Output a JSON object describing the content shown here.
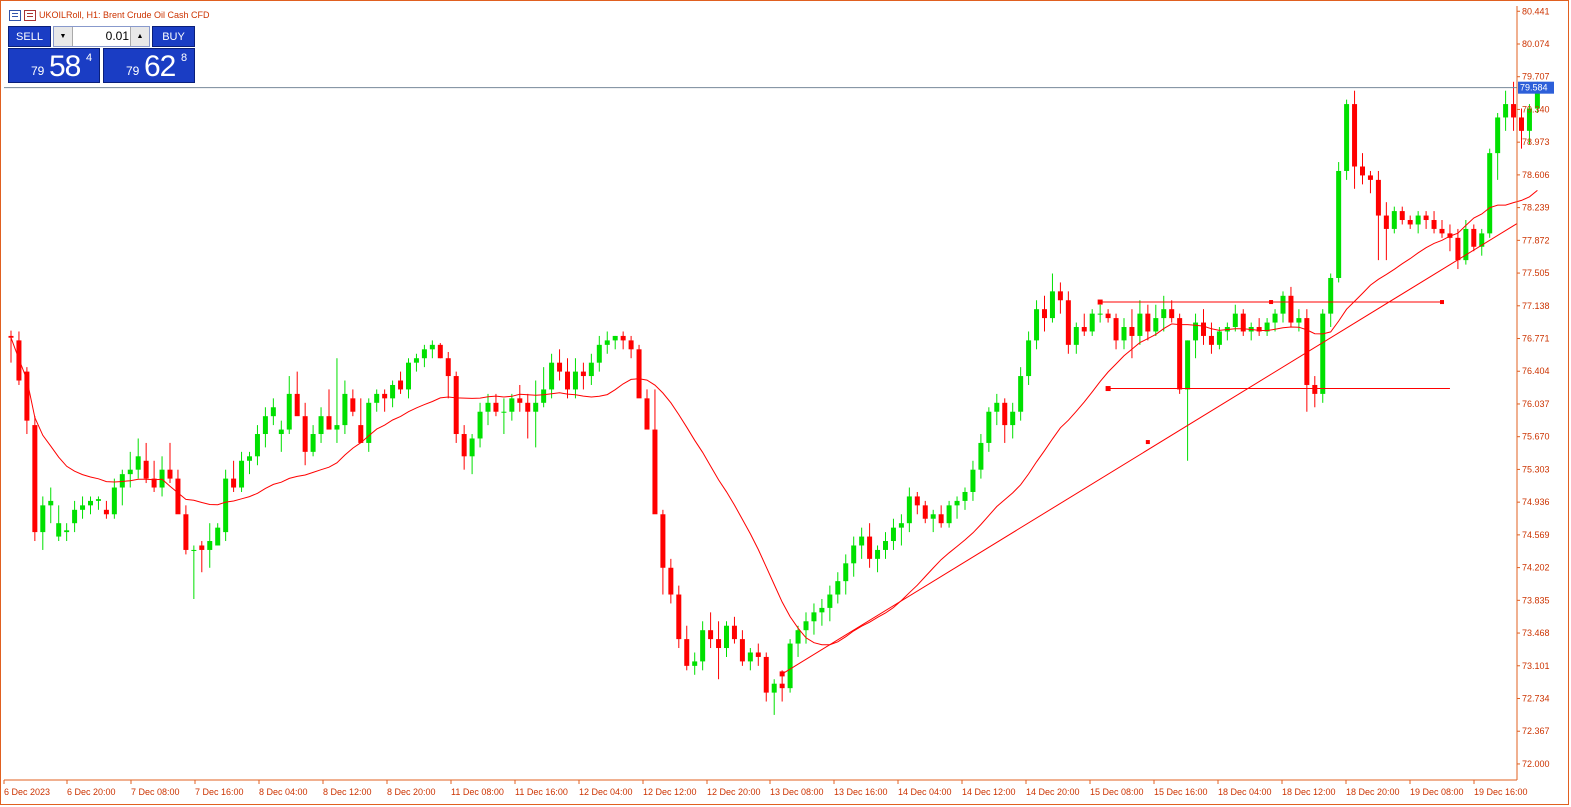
{
  "title_bar": {
    "symbol_text": "UKOILRoll, H1:  Brent Crude Oil Cash CFD"
  },
  "trade_panel": {
    "sell_label": "SELL",
    "buy_label": "BUY",
    "lot": "0.01",
    "sell_price": {
      "prefix": "79",
      "big": "58",
      "sup": "4"
    },
    "buy_price": {
      "prefix": "79",
      "big": "62",
      "sup": "8"
    }
  },
  "colors": {
    "bull": "#00e000",
    "bear": "#ff0000",
    "ma": "#ff0000",
    "axis_text": "#cc3300",
    "frame": "#e06020",
    "price_box": "#2d5fd9"
  },
  "chart_data": {
    "type": "candlestick",
    "symbol": "UKOILRoll",
    "timeframe": "H1",
    "ylim": [
      71.82,
      80.5
    ],
    "y_ticks": [
      80.441,
      80.074,
      79.707,
      79.34,
      78.973,
      78.606,
      78.239,
      77.872,
      77.505,
      77.138,
      76.771,
      76.404,
      76.037,
      75.67,
      75.303,
      74.936,
      74.569,
      74.202,
      73.835,
      73.468,
      73.101,
      72.734,
      72.367,
      72.0
    ],
    "x_tick_labels": [
      "6 Dec 2023",
      "6 Dec 20:00",
      "7 Dec 08:00",
      "7 Dec 16:00",
      "8 Dec 04:00",
      "8 Dec 12:00",
      "8 Dec 20:00",
      "11 Dec 08:00",
      "11 Dec 16:00",
      "12 Dec 04:00",
      "12 Dec 12:00",
      "12 Dec 20:00",
      "13 Dec 08:00",
      "13 Dec 16:00",
      "14 Dec 04:00",
      "14 Dec 12:00",
      "14 Dec 20:00",
      "15 Dec 08:00",
      "15 Dec 16:00",
      "18 Dec 04:00",
      "18 Dec 12:00",
      "18 Dec 20:00",
      "19 Dec 08:00",
      "19 Dec 16:00"
    ],
    "current_price": "79.584",
    "bars": [
      [
        76.8,
        76.86,
        76.5,
        76.78
      ],
      [
        76.75,
        76.85,
        76.25,
        76.3
      ],
      [
        76.4,
        76.45,
        75.7,
        75.85
      ],
      [
        75.8,
        75.9,
        74.5,
        74.6
      ],
      [
        74.6,
        75.0,
        74.4,
        74.9
      ],
      [
        74.9,
        75.1,
        74.7,
        74.95
      ],
      [
        74.55,
        74.9,
        74.5,
        74.7
      ],
      [
        74.6,
        74.7,
        74.5,
        74.62
      ],
      [
        74.7,
        74.95,
        74.6,
        74.85
      ],
      [
        74.85,
        75.0,
        74.75,
        74.9
      ],
      [
        74.9,
        75.0,
        74.8,
        74.95
      ],
      [
        74.95,
        75.0,
        74.85,
        74.97
      ],
      [
        74.85,
        74.95,
        74.75,
        74.8
      ],
      [
        74.8,
        75.2,
        74.75,
        75.1
      ],
      [
        75.1,
        75.3,
        74.9,
        75.25
      ],
      [
        75.25,
        75.5,
        75.1,
        75.3
      ],
      [
        75.3,
        75.65,
        75.2,
        75.45
      ],
      [
        75.4,
        75.6,
        75.15,
        75.2
      ],
      [
        75.2,
        75.4,
        75.05,
        75.1
      ],
      [
        75.1,
        75.45,
        75.0,
        75.3
      ],
      [
        75.3,
        75.6,
        75.15,
        75.2
      ],
      [
        75.2,
        75.3,
        74.9,
        74.8
      ],
      [
        74.8,
        74.9,
        74.35,
        74.4
      ],
      [
        74.4,
        74.45,
        73.85,
        74.4
      ],
      [
        74.45,
        74.5,
        74.15,
        74.4
      ],
      [
        74.4,
        74.7,
        74.2,
        74.5
      ],
      [
        74.45,
        74.7,
        74.45,
        74.65
      ],
      [
        74.6,
        75.3,
        74.5,
        75.2
      ],
      [
        75.2,
        75.4,
        75.05,
        75.1
      ],
      [
        75.1,
        75.5,
        75.05,
        75.4
      ],
      [
        75.4,
        75.5,
        75.25,
        75.45
      ],
      [
        75.45,
        75.8,
        75.35,
        75.7
      ],
      [
        75.7,
        76.0,
        75.55,
        75.9
      ],
      [
        75.9,
        76.1,
        75.8,
        76.0
      ],
      [
        75.7,
        75.85,
        75.5,
        75.75
      ],
      [
        75.75,
        76.35,
        75.7,
        76.15
      ],
      [
        76.15,
        76.4,
        76.05,
        75.9
      ],
      [
        75.9,
        76.05,
        75.35,
        75.5
      ],
      [
        75.5,
        75.8,
        75.45,
        75.7
      ],
      [
        75.7,
        76.0,
        75.6,
        75.9
      ],
      [
        75.9,
        76.2,
        75.8,
        75.75
      ],
      [
        75.75,
        76.55,
        75.6,
        75.8
      ],
      [
        75.8,
        76.3,
        75.7,
        76.15
      ],
      [
        76.1,
        76.2,
        75.9,
        75.95
      ],
      [
        75.8,
        76.1,
        75.75,
        75.6
      ],
      [
        75.6,
        76.1,
        75.5,
        76.05
      ],
      [
        76.05,
        76.2,
        75.95,
        76.15
      ],
      [
        76.15,
        76.2,
        75.95,
        76.1
      ],
      [
        76.1,
        76.3,
        76.0,
        76.25
      ],
      [
        76.3,
        76.4,
        76.15,
        76.2
      ],
      [
        76.2,
        76.55,
        76.1,
        76.5
      ],
      [
        76.5,
        76.6,
        76.4,
        76.55
      ],
      [
        76.55,
        76.7,
        76.45,
        76.65
      ],
      [
        76.65,
        76.75,
        76.55,
        76.7
      ],
      [
        76.7,
        76.72,
        76.55,
        76.55
      ],
      [
        76.55,
        76.62,
        76.1,
        76.35
      ],
      [
        76.35,
        76.4,
        75.6,
        75.7
      ],
      [
        75.7,
        75.8,
        75.3,
        75.45
      ],
      [
        75.45,
        75.7,
        75.25,
        75.65
      ],
      [
        75.65,
        76.05,
        75.55,
        75.95
      ],
      [
        75.95,
        76.15,
        75.8,
        76.05
      ],
      [
        76.05,
        76.15,
        75.9,
        75.95
      ],
      [
        75.95,
        76.1,
        75.7,
        75.95
      ],
      [
        75.95,
        76.15,
        75.85,
        76.1
      ],
      [
        76.1,
        76.25,
        75.95,
        76.05
      ],
      [
        76.05,
        76.15,
        75.65,
        75.95
      ],
      [
        75.95,
        76.3,
        75.55,
        76.05
      ],
      [
        76.05,
        76.45,
        76.0,
        76.2
      ],
      [
        76.2,
        76.6,
        76.1,
        76.5
      ],
      [
        76.5,
        76.65,
        76.3,
        76.4
      ],
      [
        76.4,
        76.55,
        76.1,
        76.2
      ],
      [
        76.2,
        76.55,
        76.1,
        76.4
      ],
      [
        76.4,
        76.5,
        76.2,
        76.35
      ],
      [
        76.35,
        76.6,
        76.25,
        76.5
      ],
      [
        76.5,
        76.8,
        76.4,
        76.7
      ],
      [
        76.7,
        76.85,
        76.6,
        76.75
      ],
      [
        76.75,
        76.8,
        76.65,
        76.8
      ],
      [
        76.8,
        76.85,
        76.65,
        76.75
      ],
      [
        76.75,
        76.8,
        76.55,
        76.65
      ],
      [
        76.65,
        76.7,
        76.15,
        76.1
      ],
      [
        76.1,
        76.2,
        75.85,
        75.75
      ],
      [
        75.75,
        76.2,
        75.7,
        74.8
      ],
      [
        74.8,
        74.85,
        73.9,
        74.2
      ],
      [
        74.2,
        74.3,
        73.8,
        73.9
      ],
      [
        73.9,
        74.0,
        73.3,
        73.4
      ],
      [
        73.4,
        73.55,
        73.05,
        73.1
      ],
      [
        73.1,
        73.25,
        73.0,
        73.15
      ],
      [
        73.15,
        73.6,
        73.05,
        73.5
      ],
      [
        73.5,
        73.7,
        73.3,
        73.4
      ],
      [
        73.4,
        73.6,
        72.95,
        73.3
      ],
      [
        73.3,
        73.6,
        73.2,
        73.55
      ],
      [
        73.55,
        73.65,
        73.35,
        73.4
      ],
      [
        73.4,
        73.5,
        73.1,
        73.15
      ],
      [
        73.15,
        73.3,
        73.05,
        73.25
      ],
      [
        73.25,
        73.35,
        73.1,
        73.2
      ],
      [
        73.2,
        73.25,
        72.7,
        72.8
      ],
      [
        72.8,
        72.95,
        72.55,
        72.9
      ],
      [
        72.9,
        73.05,
        72.7,
        72.85
      ],
      [
        72.85,
        73.4,
        72.8,
        73.35
      ],
      [
        73.35,
        73.55,
        73.2,
        73.5
      ],
      [
        73.5,
        73.7,
        73.35,
        73.6
      ],
      [
        73.6,
        73.8,
        73.45,
        73.7
      ],
      [
        73.7,
        73.85,
        73.55,
        73.75
      ],
      [
        73.75,
        74.0,
        73.6,
        73.9
      ],
      [
        73.9,
        74.15,
        73.8,
        74.05
      ],
      [
        74.05,
        74.35,
        73.9,
        74.25
      ],
      [
        74.25,
        74.55,
        74.1,
        74.45
      ],
      [
        74.45,
        74.65,
        74.3,
        74.55
      ],
      [
        74.55,
        74.7,
        74.2,
        74.3
      ],
      [
        74.3,
        74.45,
        74.15,
        74.4
      ],
      [
        74.4,
        74.6,
        74.3,
        74.5
      ],
      [
        74.5,
        74.75,
        74.4,
        74.65
      ],
      [
        74.65,
        74.8,
        74.45,
        74.7
      ],
      [
        74.7,
        75.1,
        74.6,
        75.0
      ],
      [
        75.0,
        75.05,
        74.8,
        74.9
      ],
      [
        74.9,
        74.95,
        74.7,
        74.75
      ],
      [
        74.75,
        74.85,
        74.6,
        74.8
      ],
      [
        74.8,
        74.9,
        74.65,
        74.7
      ],
      [
        74.7,
        74.95,
        74.65,
        74.9
      ],
      [
        74.9,
        75.0,
        74.75,
        74.95
      ],
      [
        74.95,
        75.1,
        74.85,
        75.05
      ],
      [
        75.05,
        75.4,
        74.95,
        75.3
      ],
      [
        75.3,
        75.7,
        75.2,
        75.6
      ],
      [
        75.6,
        76.0,
        75.5,
        75.95
      ],
      [
        75.95,
        76.15,
        75.8,
        76.05
      ],
      [
        76.05,
        76.1,
        75.6,
        75.8
      ],
      [
        75.8,
        76.05,
        75.65,
        75.95
      ],
      [
        75.95,
        76.45,
        75.85,
        76.35
      ],
      [
        76.35,
        76.85,
        76.25,
        76.75
      ],
      [
        76.75,
        77.2,
        76.65,
        77.1
      ],
      [
        77.1,
        77.25,
        76.85,
        77.0
      ],
      [
        77.0,
        77.5,
        76.95,
        77.3
      ],
      [
        77.3,
        77.4,
        77.05,
        77.2
      ],
      [
        77.2,
        77.3,
        76.6,
        76.7
      ],
      [
        76.7,
        76.95,
        76.6,
        76.9
      ],
      [
        76.9,
        77.05,
        76.8,
        76.85
      ],
      [
        76.85,
        77.1,
        76.8,
        77.05
      ],
      [
        77.05,
        77.15,
        76.95,
        77.05
      ],
      [
        77.05,
        77.1,
        76.95,
        77.0
      ],
      [
        77.0,
        77.05,
        76.65,
        76.75
      ],
      [
        76.75,
        77.0,
        76.65,
        76.9
      ],
      [
        76.9,
        77.1,
        76.55,
        76.8
      ],
      [
        76.8,
        77.2,
        76.7,
        77.05
      ],
      [
        77.05,
        77.15,
        76.75,
        76.85
      ],
      [
        76.85,
        77.15,
        76.8,
        77.0
      ],
      [
        77.0,
        77.25,
        76.85,
        77.1
      ],
      [
        77.1,
        77.2,
        76.95,
        77.0
      ],
      [
        77.0,
        77.05,
        76.15,
        76.2
      ],
      [
        76.2,
        76.75,
        75.4,
        76.75
      ],
      [
        76.75,
        77.05,
        76.55,
        76.95
      ],
      [
        76.95,
        77.1,
        76.7,
        76.8
      ],
      [
        76.8,
        76.95,
        76.6,
        76.7
      ],
      [
        76.7,
        76.9,
        76.65,
        76.85
      ],
      [
        76.85,
        76.95,
        76.75,
        76.9
      ],
      [
        76.9,
        77.15,
        76.85,
        77.05
      ],
      [
        77.05,
        77.1,
        76.8,
        76.85
      ],
      [
        76.85,
        76.95,
        76.75,
        76.9
      ],
      [
        76.9,
        77.0,
        76.8,
        76.85
      ],
      [
        76.85,
        77.0,
        76.8,
        76.95
      ],
      [
        76.95,
        77.1,
        76.85,
        77.05
      ],
      [
        77.05,
        77.3,
        76.95,
        77.25
      ],
      [
        77.25,
        77.35,
        76.9,
        76.95
      ],
      [
        76.95,
        77.1,
        76.85,
        77.0
      ],
      [
        77.0,
        77.1,
        75.95,
        76.25
      ],
      [
        76.25,
        76.35,
        76.0,
        76.15
      ],
      [
        76.15,
        77.1,
        76.05,
        77.05
      ],
      [
        77.05,
        77.5,
        76.9,
        77.45
      ],
      [
        77.45,
        78.75,
        77.4,
        78.65
      ],
      [
        78.65,
        79.45,
        78.55,
        79.4
      ],
      [
        79.4,
        79.55,
        78.45,
        78.7
      ],
      [
        78.7,
        78.85,
        78.5,
        78.6
      ],
      [
        78.6,
        78.65,
        78.4,
        78.55
      ],
      [
        78.55,
        78.65,
        77.65,
        78.15
      ],
      [
        78.15,
        78.3,
        77.65,
        78.0
      ],
      [
        78.0,
        78.25,
        77.95,
        78.2
      ],
      [
        78.2,
        78.25,
        78.05,
        78.1
      ],
      [
        78.1,
        78.15,
        78.0,
        78.05
      ],
      [
        78.05,
        78.2,
        77.95,
        78.15
      ],
      [
        78.15,
        78.2,
        78.0,
        78.1
      ],
      [
        78.1,
        78.2,
        77.95,
        78.0
      ],
      [
        78.0,
        78.1,
        77.9,
        77.95
      ],
      [
        77.95,
        78.05,
        77.75,
        77.9
      ],
      [
        77.9,
        78.0,
        77.55,
        77.65
      ],
      [
        77.65,
        78.1,
        77.6,
        78.0
      ],
      [
        78.0,
        78.05,
        77.75,
        77.8
      ],
      [
        77.8,
        78.0,
        77.7,
        77.95
      ],
      [
        77.95,
        78.9,
        77.9,
        78.85
      ],
      [
        78.85,
        79.3,
        78.55,
        79.25
      ],
      [
        79.25,
        79.55,
        79.1,
        79.4
      ],
      [
        79.4,
        79.65,
        79.1,
        79.25
      ],
      [
        79.25,
        79.35,
        78.9,
        79.1
      ],
      [
        79.1,
        79.4,
        78.95,
        79.35
      ],
      [
        79.35,
        79.65,
        79.3,
        79.58
      ]
    ],
    "ma_period": 20,
    "trendline": [
      [
        97,
        73.01
      ],
      [
        192,
        78.2
      ]
    ],
    "resistance_line": [
      [
        137,
        77.18
      ],
      [
        180,
        77.18
      ]
    ],
    "support_line": [
      [
        138,
        76.21
      ],
      [
        181,
        76.21
      ]
    ]
  }
}
